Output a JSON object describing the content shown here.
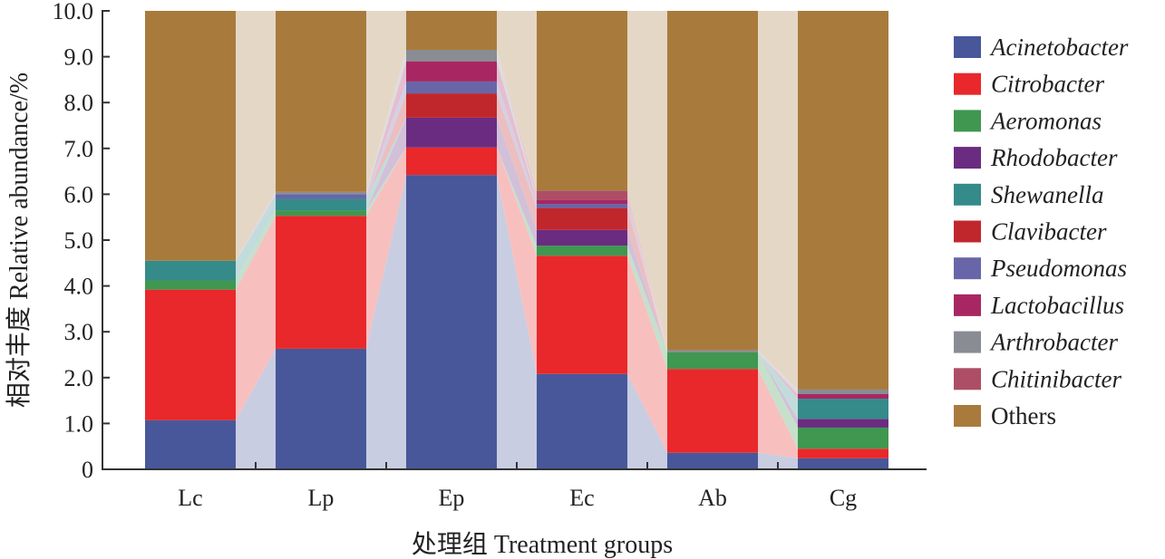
{
  "chart_data": {
    "type": "bar",
    "stacked": true,
    "title": "",
    "xlabel": "处理组 Treatment groups",
    "ylabel": "相对丰度 Relative abundance/%",
    "ylim": [
      0,
      10
    ],
    "yticks": [
      "0",
      "1.0",
      "2.0",
      "3.0",
      "4.0",
      "5.0",
      "6.0",
      "7.0",
      "8.0",
      "9.0",
      "10.0"
    ],
    "categories": [
      "Lc",
      "Lp",
      "Ep",
      "Ec",
      "Ab",
      "Cg"
    ],
    "legend_position": "right",
    "series": [
      {
        "name": "Acinetobacter",
        "italic": true,
        "color": "#48579a",
        "values": [
          1.07,
          2.63,
          6.42,
          2.08,
          0.36,
          0.24
        ]
      },
      {
        "name": "Citrobacter",
        "italic": true,
        "color": "#e8282a",
        "values": [
          2.85,
          2.9,
          0.6,
          2.58,
          1.83,
          0.21
        ]
      },
      {
        "name": "Aeromonas",
        "italic": true,
        "color": "#3f9750",
        "values": [
          0.2,
          0.12,
          0,
          0.22,
          0.36,
          0.46
        ]
      },
      {
        "name": "Rhodobacter",
        "italic": true,
        "color": "#6a2c80",
        "values": [
          0,
          0,
          0.65,
          0.34,
          0,
          0.19
        ]
      },
      {
        "name": "Shewanella",
        "italic": true,
        "color": "#358a8a",
        "values": [
          0.43,
          0.25,
          0,
          0,
          0,
          0.44
        ]
      },
      {
        "name": "Clavibacter",
        "italic": true,
        "color": "#c0272d",
        "values": [
          0,
          0,
          0.53,
          0.48,
          0,
          0
        ]
      },
      {
        "name": "Pseudomonas",
        "italic": true,
        "color": "#6866a8",
        "values": [
          0,
          0.1,
          0.26,
          0.09,
          0,
          0
        ]
      },
      {
        "name": "Lactobacillus",
        "italic": true,
        "color": "#a82762",
        "values": [
          0,
          0,
          0.44,
          0.08,
          0,
          0.1
        ]
      },
      {
        "name": "Arthrobacter",
        "italic": true,
        "color": "#8a8c93",
        "values": [
          0,
          0.05,
          0.25,
          0,
          0.05,
          0.1
        ]
      },
      {
        "name": "Chitinibacter",
        "italic": true,
        "color": "#ad4e66",
        "values": [
          0,
          0,
          0,
          0.21,
          0,
          0
        ]
      },
      {
        "name": "Others",
        "italic": false,
        "color": "#a87b3c",
        "values": [
          5.45,
          3.95,
          0.85,
          3.92,
          7.4,
          8.26
        ]
      }
    ]
  }
}
